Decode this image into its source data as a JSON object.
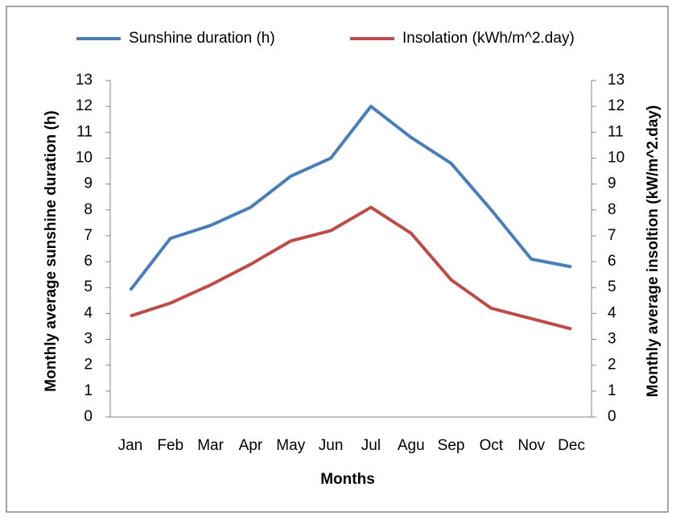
{
  "chart_data": {
    "type": "line",
    "x_label": "Months",
    "y_label": "Monthly average sunshine duration (h)",
    "y2_label": "Monthly average insoltion  (kW/m^2.day)",
    "categories": [
      "Jan",
      "Feb",
      "Mar",
      "Apr",
      "May",
      "Jun",
      "Jul",
      "Agu",
      "Sep",
      "Oct",
      "Nov",
      "Dec"
    ],
    "series": [
      {
        "name": "Sunshine duration (h)",
        "color": "#4a7ebb",
        "values": [
          4.9,
          6.9,
          7.4,
          8.1,
          9.3,
          10.0,
          12.0,
          10.8,
          9.8,
          8.0,
          6.1,
          5.8
        ]
      },
      {
        "name": "Insolation (kWh/m^2.day)",
        "color": "#be4b48",
        "axis": "y2",
        "values": [
          3.9,
          4.4,
          5.1,
          5.9,
          6.8,
          7.2,
          8.1,
          7.1,
          5.3,
          4.2,
          3.8,
          3.4
        ]
      }
    ],
    "ylim": [
      0,
      13
    ],
    "yticks": [
      0,
      1,
      2,
      3,
      4,
      5,
      6,
      7,
      8,
      9,
      10,
      11,
      12,
      13
    ],
    "y2lim": [
      0,
      13
    ],
    "y2ticks": [
      0,
      1,
      2,
      3,
      4,
      5,
      6,
      7,
      8,
      9,
      10,
      11,
      12,
      13
    ],
    "legend": "top",
    "grid": false
  }
}
